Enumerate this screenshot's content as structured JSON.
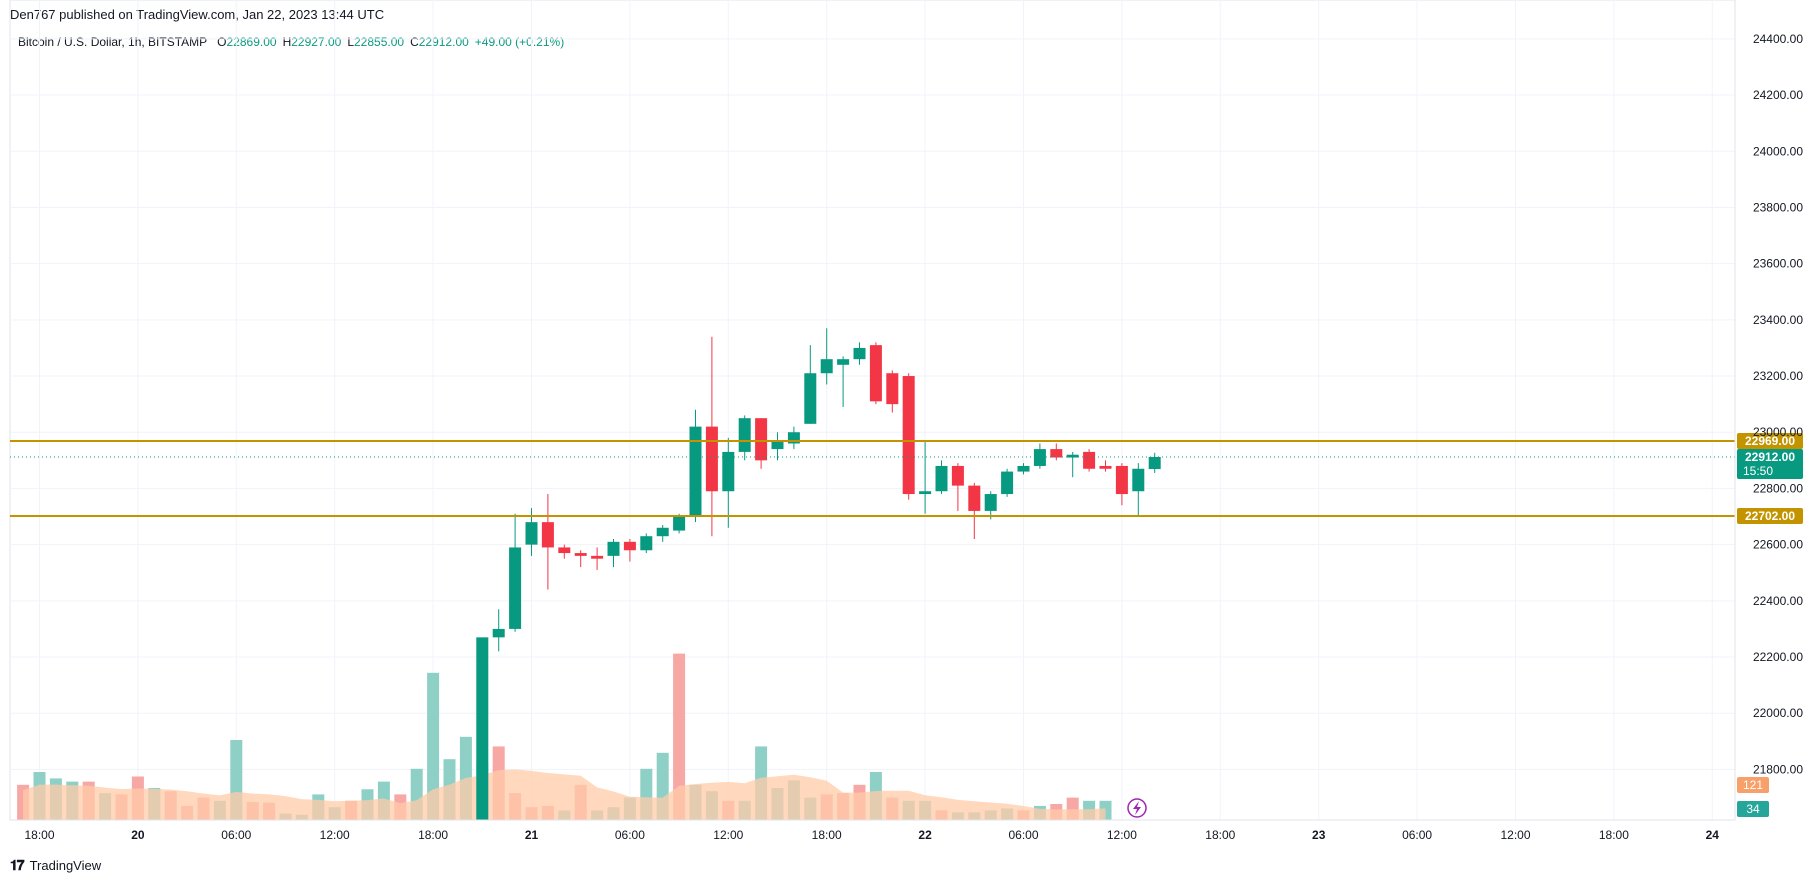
{
  "header": {
    "published": "Den767 published on TradingView.com, Jan 22, 2023 13:44 UTC"
  },
  "legend": {
    "symbol": "Bitcoin / U.S. Dollar, 1h, BITSTAMP",
    "open_label": "O",
    "open": "22869.00",
    "high_label": "H",
    "high": "22927.00",
    "low_label": "L",
    "low": "22855.00",
    "close_label": "C",
    "close": "22912.00",
    "change": "+49.00 (+0.21%)"
  },
  "footer": {
    "brand": "TradingView",
    "brand_icon": "tradingview-logo-icon"
  },
  "colors": {
    "up": "#089981",
    "down": "#f23645",
    "vol_up": "#8fd0c6",
    "vol_down": "#f7a8a4",
    "vol_ma": "#ffcba8",
    "level": "#c49400",
    "grid": "#f0f3fa"
  },
  "chart_data": {
    "type": "candlestick",
    "y_range": [
      21620,
      24460
    ],
    "y_ticks": [
      "24400.00",
      "24200.00",
      "24000.00",
      "23800.00",
      "23600.00",
      "23400.00",
      "23200.00",
      "23000.00",
      "22800.00",
      "22600.00",
      "22400.00",
      "22200.00",
      "22000.00",
      "21800.00"
    ],
    "x_ticks": [
      {
        "label": "18:00",
        "t": 0
      },
      {
        "label": "20",
        "t": 6
      },
      {
        "label": "06:00",
        "t": 12
      },
      {
        "label": "12:00",
        "t": 18
      },
      {
        "label": "18:00",
        "t": 24
      },
      {
        "label": "21",
        "t": 30
      },
      {
        "label": "06:00",
        "t": 36
      },
      {
        "label": "12:00",
        "t": 42
      },
      {
        "label": "18:00",
        "t": 48
      },
      {
        "label": "22",
        "t": 54
      },
      {
        "label": "06:00",
        "t": 60
      },
      {
        "label": "12:00",
        "t": 66
      },
      {
        "label": "18:00",
        "t": 72
      },
      {
        "label": "23",
        "t": 78
      },
      {
        "label": "06:00",
        "t": 84
      },
      {
        "label": "12:00",
        "t": 90
      },
      {
        "label": "18:00",
        "t": 96
      },
      {
        "label": "24",
        "t": 102
      }
    ],
    "candles_start_t": 27,
    "candles": [
      {
        "o": 21620,
        "h": 22270,
        "l": 21620,
        "c": 22270
      },
      {
        "o": 22270,
        "h": 22370,
        "l": 22220,
        "c": 22300
      },
      {
        "o": 22300,
        "h": 22710,
        "l": 22290,
        "c": 22590
      },
      {
        "o": 22600,
        "h": 22730,
        "l": 22560,
        "c": 22680
      },
      {
        "o": 22680,
        "h": 22780,
        "l": 22440,
        "c": 22590
      },
      {
        "o": 22590,
        "h": 22600,
        "l": 22550,
        "c": 22570
      },
      {
        "o": 22570,
        "h": 22580,
        "l": 22520,
        "c": 22560
      },
      {
        "o": 22560,
        "h": 22590,
        "l": 22510,
        "c": 22550
      },
      {
        "o": 22560,
        "h": 22620,
        "l": 22520,
        "c": 22610
      },
      {
        "o": 22610,
        "h": 22620,
        "l": 22540,
        "c": 22580
      },
      {
        "o": 22580,
        "h": 22640,
        "l": 22570,
        "c": 22630
      },
      {
        "o": 22630,
        "h": 22670,
        "l": 22610,
        "c": 22660
      },
      {
        "o": 22650,
        "h": 22710,
        "l": 22640,
        "c": 22700
      },
      {
        "o": 22700,
        "h": 23080,
        "l": 22680,
        "c": 23020
      },
      {
        "o": 23020,
        "h": 23340,
        "l": 22630,
        "c": 22790
      },
      {
        "o": 22790,
        "h": 22980,
        "l": 22660,
        "c": 22930
      },
      {
        "o": 22930,
        "h": 23060,
        "l": 22900,
        "c": 23050
      },
      {
        "o": 23050,
        "h": 23050,
        "l": 22870,
        "c": 22900
      },
      {
        "o": 22940,
        "h": 23000,
        "l": 22900,
        "c": 22970
      },
      {
        "o": 22960,
        "h": 23020,
        "l": 22940,
        "c": 23000
      },
      {
        "o": 23030,
        "h": 23310,
        "l": 23030,
        "c": 23210
      },
      {
        "o": 23210,
        "h": 23370,
        "l": 23170,
        "c": 23260
      },
      {
        "o": 23240,
        "h": 23270,
        "l": 23090,
        "c": 23260
      },
      {
        "o": 23260,
        "h": 23320,
        "l": 23240,
        "c": 23300
      },
      {
        "o": 23310,
        "h": 23320,
        "l": 23100,
        "c": 23110
      },
      {
        "o": 23210,
        "h": 23220,
        "l": 23070,
        "c": 23100
      },
      {
        "o": 23200,
        "h": 23210,
        "l": 22760,
        "c": 22780
      },
      {
        "o": 22780,
        "h": 22970,
        "l": 22710,
        "c": 22790
      },
      {
        "o": 22790,
        "h": 22900,
        "l": 22780,
        "c": 22880
      },
      {
        "o": 22880,
        "h": 22890,
        "l": 22720,
        "c": 22810
      },
      {
        "o": 22810,
        "h": 22820,
        "l": 22620,
        "c": 22720
      },
      {
        "o": 22720,
        "h": 22790,
        "l": 22690,
        "c": 22780
      },
      {
        "o": 22780,
        "h": 22870,
        "l": 22770,
        "c": 22860
      },
      {
        "o": 22860,
        "h": 22890,
        "l": 22850,
        "c": 22880
      },
      {
        "o": 22880,
        "h": 22960,
        "l": 22870,
        "c": 22940
      },
      {
        "o": 22940,
        "h": 22960,
        "l": 22900,
        "c": 22910
      },
      {
        "o": 22910,
        "h": 22930,
        "l": 22840,
        "c": 22920
      },
      {
        "o": 22930,
        "h": 22940,
        "l": 22860,
        "c": 22870
      },
      {
        "o": 22880,
        "h": 22900,
        "l": 22860,
        "c": 22870
      },
      {
        "o": 22880,
        "h": 22890,
        "l": 22740,
        "c": 22780
      },
      {
        "o": 22790,
        "h": 22890,
        "l": 22700,
        "c": 22870
      },
      {
        "o": 22869,
        "h": 22927,
        "l": 22855,
        "c": 22912
      }
    ],
    "volume": {
      "start_t": -1,
      "values": [
        {
          "v": 0.55,
          "up": false
        },
        {
          "v": 0.75,
          "up": true
        },
        {
          "v": 0.65,
          "up": true
        },
        {
          "v": 0.6,
          "up": true
        },
        {
          "v": 0.6,
          "up": false
        },
        {
          "v": 0.42,
          "up": true
        },
        {
          "v": 0.4,
          "up": false
        },
        {
          "v": 0.68,
          "up": false
        },
        {
          "v": 0.5,
          "up": true
        },
        {
          "v": 0.45,
          "up": false
        },
        {
          "v": 0.22,
          "up": false
        },
        {
          "v": 0.35,
          "up": false
        },
        {
          "v": 0.3,
          "up": true
        },
        {
          "v": 1.25,
          "up": true
        },
        {
          "v": 0.28,
          "up": false
        },
        {
          "v": 0.27,
          "up": false
        },
        {
          "v": 0.1,
          "up": true
        },
        {
          "v": 0.08,
          "up": true
        },
        {
          "v": 0.4,
          "up": true
        },
        {
          "v": 0.2,
          "up": true
        },
        {
          "v": 0.3,
          "up": false
        },
        {
          "v": 0.48,
          "up": true
        },
        {
          "v": 0.6,
          "up": true
        },
        {
          "v": 0.4,
          "up": false
        },
        {
          "v": 0.8,
          "up": true
        },
        {
          "v": 2.3,
          "up": true
        },
        {
          "v": 0.95,
          "up": true
        },
        {
          "v": 1.3,
          "up": true
        },
        {
          "v": 0.9,
          "up": true
        },
        {
          "v": 1.15,
          "up": false
        },
        {
          "v": 0.42,
          "up": false
        },
        {
          "v": 0.2,
          "up": false
        },
        {
          "v": 0.22,
          "up": false
        },
        {
          "v": 0.15,
          "up": true
        },
        {
          "v": 0.55,
          "up": false
        },
        {
          "v": 0.15,
          "up": true
        },
        {
          "v": 0.2,
          "up": true
        },
        {
          "v": 0.35,
          "up": true
        },
        {
          "v": 0.8,
          "up": true
        },
        {
          "v": 1.05,
          "up": true
        },
        {
          "v": 2.6,
          "up": false
        },
        {
          "v": 0.55,
          "up": true
        },
        {
          "v": 0.45,
          "up": true
        },
        {
          "v": 0.3,
          "up": false
        },
        {
          "v": 0.3,
          "up": true
        },
        {
          "v": 1.15,
          "up": true
        },
        {
          "v": 0.5,
          "up": true
        },
        {
          "v": 0.62,
          "up": true
        },
        {
          "v": 0.35,
          "up": true
        },
        {
          "v": 0.4,
          "up": false
        },
        {
          "v": 0.42,
          "up": false
        },
        {
          "v": 0.55,
          "up": false
        },
        {
          "v": 0.75,
          "up": true
        },
        {
          "v": 0.35,
          "up": false
        },
        {
          "v": 0.3,
          "up": true
        },
        {
          "v": 0.3,
          "up": true
        },
        {
          "v": 0.15,
          "up": false
        },
        {
          "v": 0.12,
          "up": true
        },
        {
          "v": 0.12,
          "up": true
        },
        {
          "v": 0.15,
          "up": true
        },
        {
          "v": 0.18,
          "up": true
        },
        {
          "v": 0.15,
          "up": false
        },
        {
          "v": 0.22,
          "up": true
        },
        {
          "v": 0.25,
          "up": false
        },
        {
          "v": 0.35,
          "up": false
        },
        {
          "v": 0.3,
          "up": true
        },
        {
          "v": 0.3,
          "up": true
        }
      ]
    },
    "levels": [
      {
        "price": 22969,
        "label": "22969.00"
      },
      {
        "price": 22702,
        "label": "22702.00"
      }
    ],
    "last_price": {
      "price": 22912,
      "label": "22912.00",
      "countdown": "15:50"
    },
    "volume_badges": [
      {
        "label": "121",
        "color": "#f7a06a"
      },
      {
        "label": "34",
        "color": "#26a69a"
      }
    ]
  }
}
